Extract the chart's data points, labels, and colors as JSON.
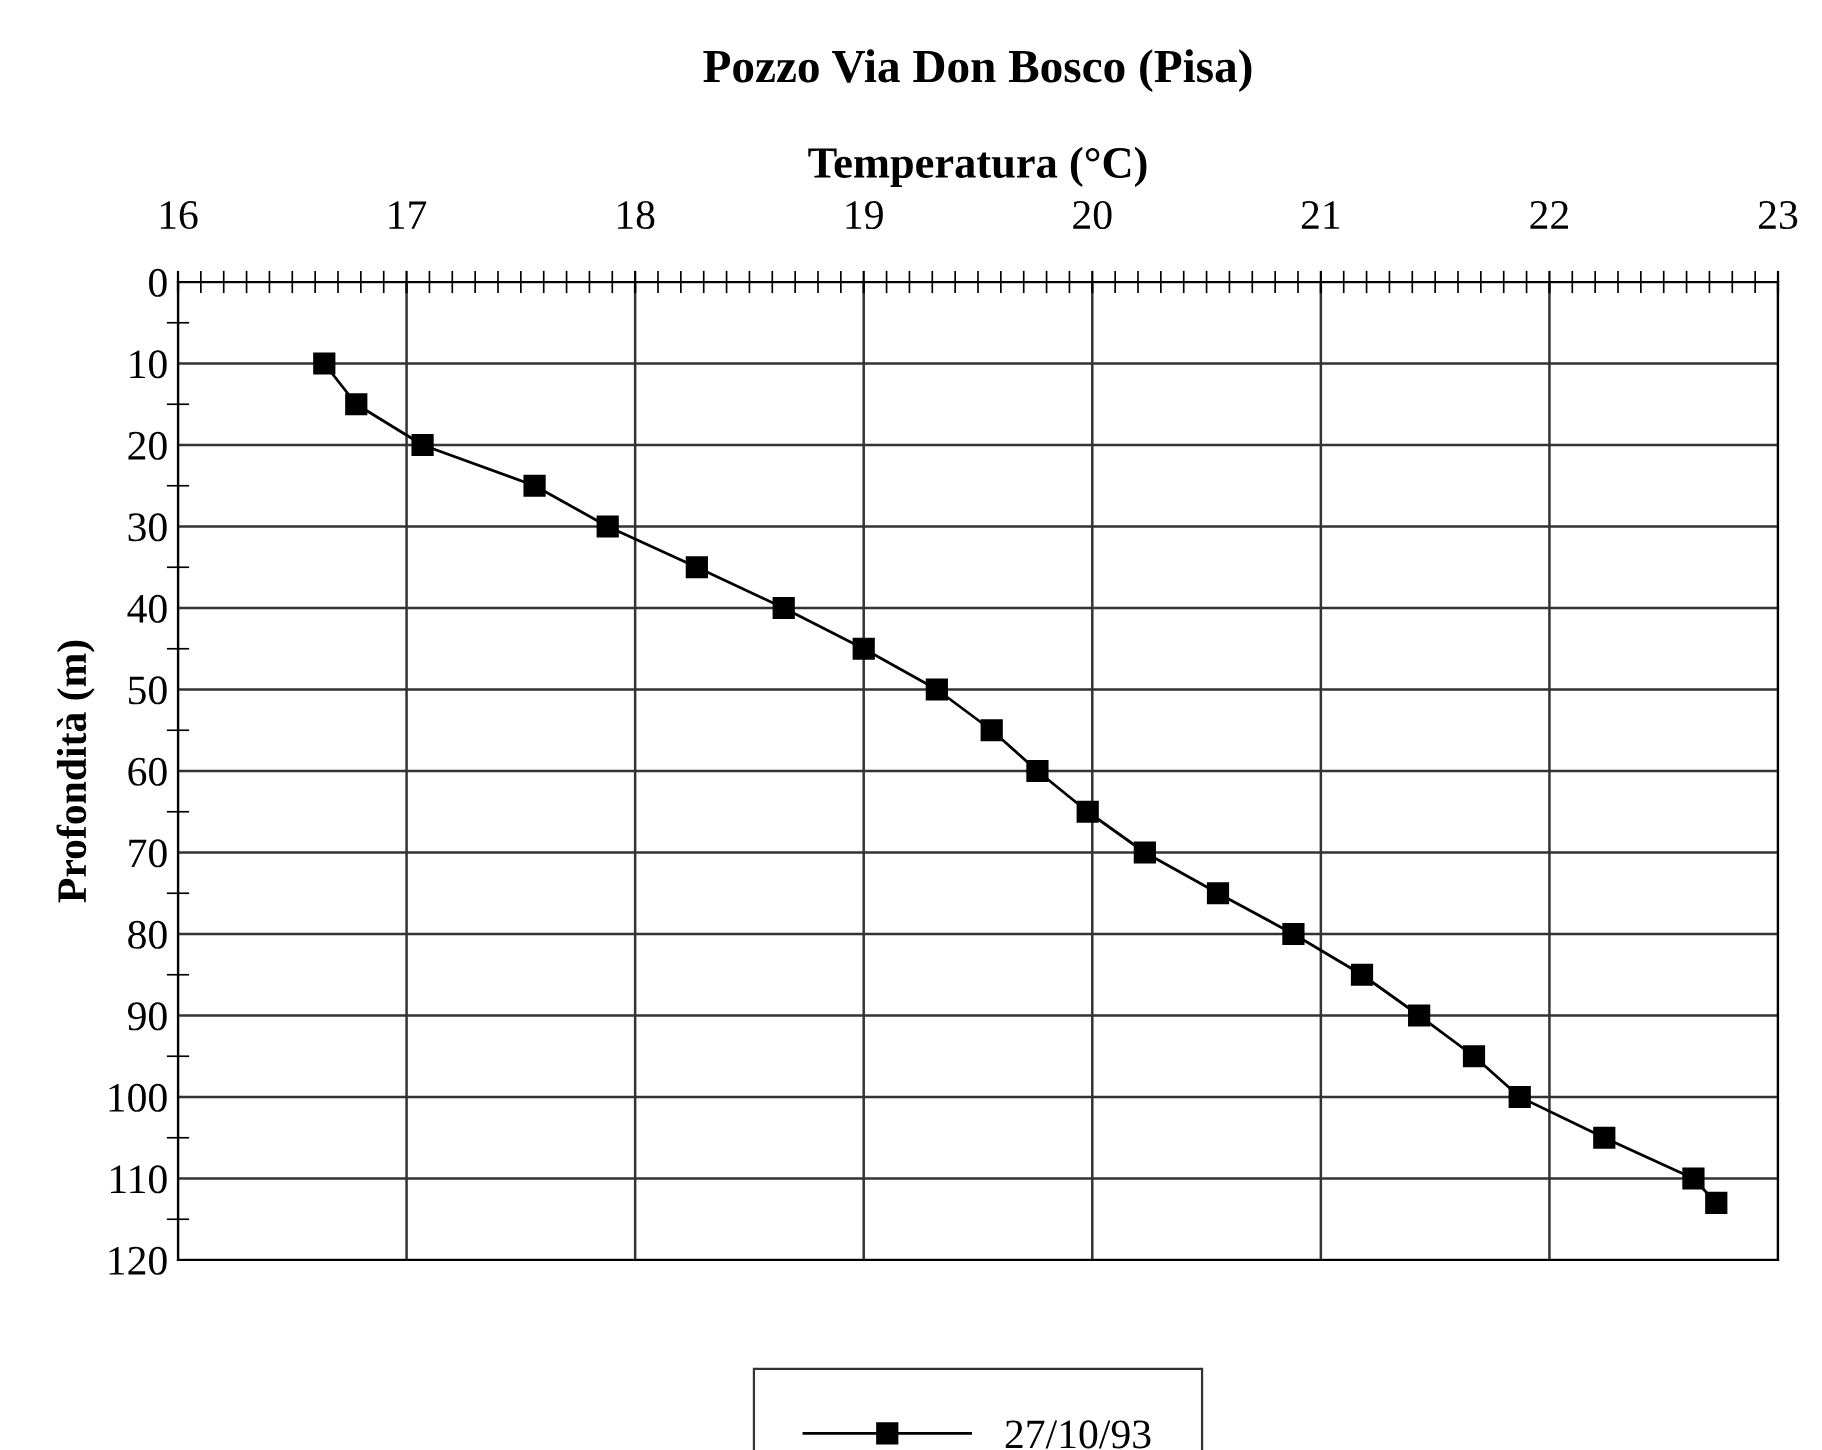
{
  "chart_data": {
    "type": "line",
    "title": "Pozzo Via Don Bosco (Pisa)",
    "xlabel": "Temperatura (°C)",
    "ylabel": "Profondità (m)",
    "series": [
      {
        "name": "27/10/93",
        "color": "#000000",
        "x": [
          16.64,
          16.78,
          17.07,
          17.56,
          17.88,
          18.27,
          18.65,
          19.0,
          19.32,
          19.56,
          19.76,
          19.98,
          20.23,
          20.55,
          20.88,
          21.18,
          21.43,
          21.67,
          21.87,
          22.24,
          22.63,
          22.73
        ],
        "values": [
          10,
          15,
          20,
          25,
          30,
          35,
          40,
          45,
          50,
          55,
          60,
          65,
          70,
          75,
          80,
          85,
          90,
          95,
          100,
          105,
          110,
          113
        ]
      }
    ],
    "xlim": [
      16,
      23
    ],
    "ylim": [
      120,
      0
    ],
    "xticks": [
      16,
      {
        "value": 16.1,
        "label": null
      },
      {
        "value": 16.2,
        "label": null
      },
      {
        "value": 16.3,
        "label": null
      },
      {
        "value": 16.4,
        "label": null
      },
      {
        "value": 16.5,
        "label": null
      },
      {
        "value": 16.6,
        "label": null
      },
      {
        "value": 16.7,
        "label": null
      },
      {
        "value": 16.8,
        "label": null
      },
      {
        "value": 16.9,
        "label": null
      },
      17,
      {
        "value": 17.1,
        "label": null
      },
      {
        "value": 17.2,
        "label": null
      },
      {
        "value": 17.3,
        "label": null
      },
      {
        "value": 17.4,
        "label": null
      },
      {
        "value": 17.5,
        "label": null
      },
      {
        "value": 17.6,
        "label": null
      },
      {
        "value": 17.7,
        "label": null
      },
      {
        "value": 17.8,
        "label": null
      },
      {
        "value": 17.9,
        "label": null
      },
      18,
      {
        "value": 18.1,
        "label": null
      },
      {
        "value": 18.2,
        "label": null
      },
      {
        "value": 18.3,
        "label": null
      },
      {
        "value": 18.4,
        "label": null
      },
      {
        "value": 18.5,
        "label": null
      },
      {
        "value": 18.6,
        "label": null
      },
      {
        "value": 18.7,
        "label": null
      },
      {
        "value": 18.8,
        "label": null
      },
      {
        "value": 18.9,
        "label": null
      },
      19,
      {
        "value": 19.1,
        "label": null
      },
      {
        "value": 19.2,
        "label": null
      },
      {
        "value": 19.3,
        "label": null
      },
      {
        "value": 19.4,
        "label": null
      },
      {
        "value": 19.5,
        "label": null
      },
      {
        "value": 19.6,
        "label": null
      },
      {
        "value": 19.7,
        "label": null
      },
      {
        "value": 19.8,
        "label": null
      },
      {
        "value": 19.9,
        "label": null
      },
      20,
      {
        "value": 20.1,
        "label": null
      },
      {
        "value": 20.2,
        "label": null
      },
      {
        "value": 20.3,
        "label": null
      },
      {
        "value": 20.4,
        "label": null
      },
      {
        "value": 20.5,
        "label": null
      },
      {
        "value": 20.6,
        "label": null
      },
      {
        "value": 20.7,
        "label": null
      },
      {
        "value": 20.8,
        "label": null
      },
      {
        "value": 20.9,
        "label": null
      },
      21,
      {
        "value": 21.1,
        "label": null
      },
      {
        "value": 21.2,
        "label": null
      },
      {
        "value": 21.3,
        "label": null
      },
      {
        "value": 21.4,
        "label": null
      },
      {
        "value": 21.5,
        "label": null
      },
      {
        "value": 21.6,
        "label": null
      },
      {
        "value": 21.7,
        "label": null
      },
      {
        "value": 21.8,
        "label": null
      },
      {
        "value": 21.9,
        "label": null
      },
      22,
      {
        "value": 22.1,
        "label": null
      },
      {
        "value": 22.2,
        "label": null
      },
      {
        "value": 22.3,
        "label": null
      },
      {
        "value": 22.4,
        "label": null
      },
      {
        "value": 22.5,
        "label": null
      },
      {
        "value": 22.6,
        "label": null
      },
      {
        "value": 22.7,
        "label": null
      },
      {
        "value": 22.8,
        "label": null
      },
      {
        "value": 22.9,
        "label": null
      },
      23
    ],
    "yticks": [
      0,
      {
        "value": 5,
        "label": null
      },
      10,
      {
        "value": 15,
        "label": null
      },
      20,
      {
        "value": 25,
        "label": null
      },
      30,
      {
        "value": 35,
        "label": null
      },
      40,
      {
        "value": 45,
        "label": null
      },
      50,
      {
        "value": 55,
        "label": null
      },
      60,
      {
        "value": 65,
        "label": null
      },
      70,
      {
        "value": 75,
        "label": null
      },
      80,
      {
        "value": 85,
        "label": null
      },
      90,
      {
        "value": 95,
        "label": null
      },
      100,
      {
        "value": 105,
        "label": null
      },
      110,
      {
        "value": 115,
        "label": null
      },
      120
    ],
    "grid": true,
    "legend": "bottom",
    "marker": "square",
    "line_style": "solid"
  }
}
